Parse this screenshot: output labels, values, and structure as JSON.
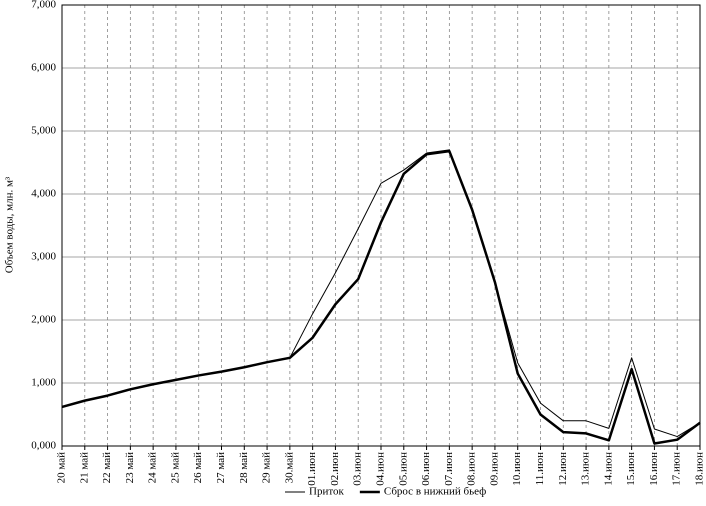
{
  "chart_data": {
    "type": "line",
    "y_label": "Объем воды, млн. м³",
    "categories": [
      "20 май",
      "21 май",
      "22 май",
      "23 май",
      "24 май",
      "25 май",
      "26 май",
      "27 май",
      "28 май",
      "29 май",
      "30.май",
      "01.июн",
      "02.июн",
      "03.июн",
      "04.июн",
      "05.июн",
      "06.июн",
      "07.июн",
      "08.июн",
      "09.июн",
      "10.июн",
      "11.июн",
      "12.июн",
      "13.июн",
      "14.июн",
      "15.июн",
      "16.июн",
      "17.июн",
      "18.июн"
    ],
    "series": [
      {
        "name": "Приток",
        "color": "#000000",
        "width": 1,
        "values": [
          0.62,
          0.72,
          0.8,
          0.9,
          0.98,
          1.05,
          1.12,
          1.18,
          1.25,
          1.33,
          1.4,
          2.1,
          2.75,
          3.45,
          4.17,
          4.38,
          4.65,
          4.7,
          3.75,
          2.6,
          1.32,
          0.68,
          0.4,
          0.4,
          0.28,
          1.4,
          0.27,
          0.15,
          0.37
        ]
      },
      {
        "name": "Сброс в нижний бьеф",
        "color": "#000000",
        "width": 2.5,
        "values": [
          0.62,
          0.72,
          0.8,
          0.9,
          0.98,
          1.05,
          1.12,
          1.18,
          1.25,
          1.33,
          1.4,
          1.72,
          2.25,
          2.65,
          3.55,
          4.32,
          4.63,
          4.68,
          3.75,
          2.6,
          1.15,
          0.5,
          0.22,
          0.2,
          0.09,
          1.22,
          0.04,
          0.1,
          0.37
        ]
      }
    ],
    "ylim": [
      0,
      7
    ],
    "yticks": [
      {
        "value": 0,
        "label": "0,000"
      },
      {
        "value": 1,
        "label": "1,000"
      },
      {
        "value": 2,
        "label": "2,000"
      },
      {
        "value": 3,
        "label": "3,000"
      },
      {
        "value": 4,
        "label": "4,000"
      },
      {
        "value": 5,
        "label": "5,000"
      },
      {
        "value": 6,
        "label": "6,000"
      },
      {
        "value": 7,
        "label": "7,000"
      }
    ],
    "grid": true,
    "legend": "bottom"
  }
}
